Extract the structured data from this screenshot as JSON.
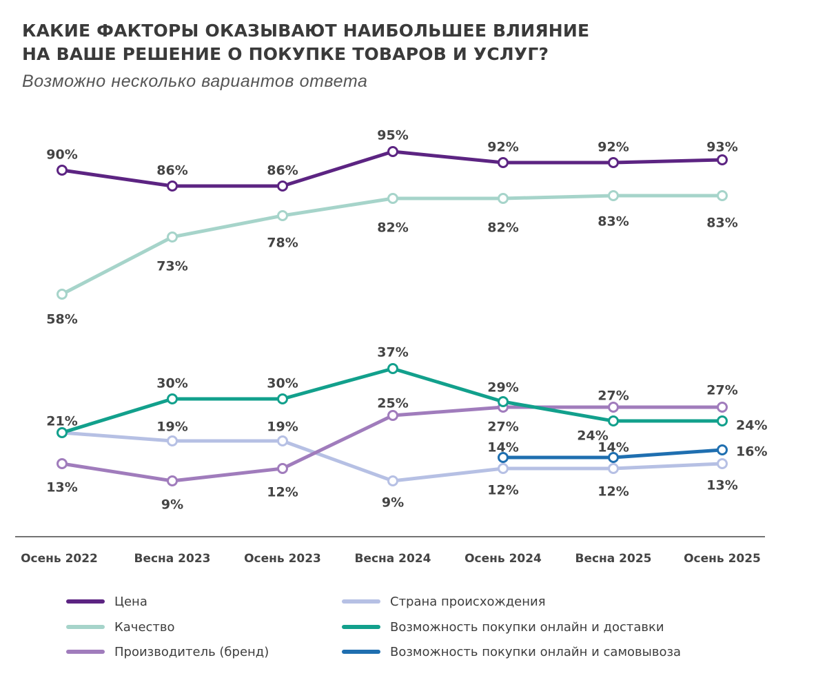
{
  "header": {
    "title_line1": "КАКИЕ ФАКТОРЫ ОКАЗЫВАЮТ НАИБОЛЬШЕЕ ВЛИЯНИЕ",
    "title_line2": "НА ВАШЕ РЕШЕНИЕ О ПОКУПКЕ ТОВАРОВ И УСЛУГ?",
    "subtitle": "Возможно несколько вариантов ответа"
  },
  "chart_data": {
    "type": "line",
    "title": "КАКИЕ ФАКТОРЫ ОКАЗЫВАЮТ НАИБОЛЬШЕЕ ВЛИЯНИЕ НА ВАШЕ РЕШЕНИЕ О ПОКУПКЕ ТОВАРОВ И УСЛУГ?",
    "subtitle": "Возможно несколько вариантов ответа",
    "xlabel": "",
    "ylabel": "",
    "categories": [
      "Осень 2022",
      "Весна 2023",
      "Осень 2023",
      "Весна 2024",
      "Осень 2024",
      "Весна 2025",
      "Осень 2025"
    ],
    "unit": "%",
    "grid": false,
    "legend_position": "bottom",
    "series": [
      {
        "name": "Цена",
        "color": "#5c2482",
        "values": [
          90,
          86,
          86,
          95,
          92,
          92,
          93
        ],
        "labels": [
          "90%",
          "86%",
          "86%",
          "95%",
          "92%",
          "92%",
          "93%"
        ]
      },
      {
        "name": "Качество",
        "color": "#a6d4ca",
        "values": [
          58,
          73,
          78,
          82,
          82,
          83,
          83
        ],
        "labels": [
          "58%",
          "73%",
          "78%",
          "82%",
          "82%",
          "83%",
          "83%"
        ]
      },
      {
        "name": "Производитель (бренд)",
        "color": "#a07cbc",
        "values": [
          13,
          9,
          12,
          25,
          27,
          27,
          27
        ],
        "labels": [
          "13%",
          "9%",
          "12%",
          "25%",
          "27%",
          "27%",
          "27%"
        ]
      },
      {
        "name": "Страна происхождения",
        "color": "#b6c0e4",
        "values": [
          21,
          19,
          19,
          9,
          12,
          12,
          13
        ],
        "labels": [
          "21%",
          "19%",
          "19%",
          "9%",
          "12%",
          "12%",
          "13%"
        ]
      },
      {
        "name": "Возможность покупки онлайн и доставки",
        "color": "#12a08c",
        "values": [
          21,
          30,
          30,
          37,
          29,
          24,
          24
        ],
        "labels": [
          "",
          "30%",
          "30%",
          "37%",
          "29%",
          "24%",
          "24%"
        ]
      },
      {
        "name": "Возможность покупки онлайн и самовывоза",
        "color": "#1f6fb0",
        "values": [
          null,
          null,
          null,
          null,
          14,
          14,
          16
        ],
        "labels": [
          "",
          "",
          "",
          "",
          "14%",
          "14%",
          "16%"
        ]
      }
    ]
  }
}
